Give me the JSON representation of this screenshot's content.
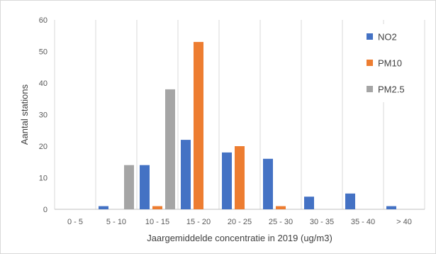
{
  "chart_data": {
    "type": "bar",
    "title": "",
    "xlabel": "Jaargemiddelde concentratie in 2019 (ug/m3)",
    "ylabel": "Aantal stations",
    "categories": [
      "0 - 5",
      "5 - 10",
      "10 - 15",
      "15 - 20",
      "20 - 25",
      "25 - 30",
      "30 - 35",
      "35 - 40",
      "> 40"
    ],
    "series": [
      {
        "name": "NO2",
        "color": "#4472C4",
        "values": [
          0,
          1,
          14,
          22,
          18,
          16,
          4,
          5,
          1
        ]
      },
      {
        "name": "PM10",
        "color": "#ED7D31",
        "values": [
          0,
          0,
          1,
          53,
          20,
          1,
          0,
          0,
          0
        ]
      },
      {
        "name": "PM2.5",
        "color": "#A5A5A5",
        "values": [
          0,
          14,
          38,
          0,
          0,
          0,
          0,
          0,
          0
        ]
      }
    ],
    "ylim": [
      0,
      60
    ],
    "yticks": [
      0,
      10,
      20,
      30,
      40,
      50,
      60
    ],
    "grid": "vertical category separators",
    "legend_position": "top-right"
  }
}
